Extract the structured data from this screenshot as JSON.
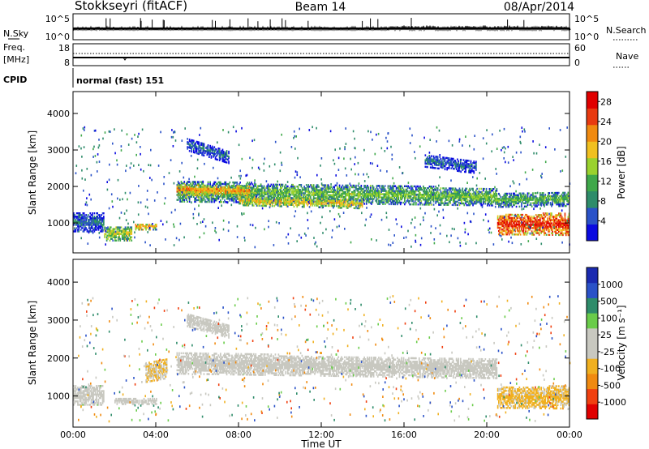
{
  "header": {
    "station": "Stokkseyri (fitACF)",
    "beam": "Beam 14",
    "date": "08/Apr/2014"
  },
  "top_panels": {
    "nsky": {
      "label": "N.Sky",
      "ticks": [
        "10^5",
        "10^0"
      ]
    },
    "nsearch": {
      "label": "N.Search",
      "ticks": [
        "10^5",
        "10^0"
      ]
    },
    "freq": {
      "label_line1": "Freq.",
      "label_line2": "[MHz]",
      "ticks": [
        "18",
        "8"
      ]
    },
    "nave": {
      "label": "Nave",
      "ticks": [
        "60",
        "0"
      ]
    },
    "cpid": {
      "label": "CPID",
      "value": "normal (fast) 151"
    }
  },
  "colors": {
    "power_scale": [
      "#0a0ae0",
      "#2a52c8",
      "#2e8c6a",
      "#3fa84a",
      "#9ad22e",
      "#f0c020",
      "#f08a10",
      "#e83a10",
      "#e00000"
    ],
    "velocity_scale": [
      "#e00000",
      "#f04010",
      "#f08a10",
      "#f0b020",
      "#c8c8c0",
      "#c8c8c0",
      "#6acc4a",
      "#2e8c6a",
      "#2a52c8",
      "#1a2ab0"
    ]
  },
  "chart_data": [
    {
      "type": "heatmap",
      "name": "power",
      "ylabel": "Slant Range [km]",
      "ylim": [
        180,
        4600
      ],
      "y_ticks": [
        "4000",
        "3000",
        "2000",
        "1000"
      ],
      "xlim": [
        0,
        24
      ],
      "x_ticks": [
        "00:00",
        "04:00",
        "08:00",
        "12:00",
        "16:00",
        "20:00",
        "00:00"
      ],
      "colorbar": {
        "label": "Power [dB]",
        "ticks": [
          "28",
          "24",
          "20",
          "16",
          "12",
          "8",
          "4"
        ],
        "range": [
          0,
          30
        ]
      },
      "bands": [
        {
          "t0": 5.0,
          "t1": 20.5,
          "r0c": 1850,
          "r1c": 1700,
          "w0": 280,
          "w1": 240,
          "value": 14
        },
        {
          "t0": 5.0,
          "t1": 8.5,
          "r0c": 1900,
          "r1c": 1850,
          "w0": 150,
          "w1": 140,
          "value": 22
        },
        {
          "t0": 8.0,
          "t1": 14.0,
          "r0c": 1600,
          "r1c": 1500,
          "w0": 130,
          "w1": 120,
          "value": 19
        },
        {
          "t0": 20.5,
          "t1": 24.0,
          "r0c": 950,
          "r1c": 950,
          "w0": 280,
          "w1": 300,
          "value": 27
        },
        {
          "t0": 20.5,
          "t1": 24.0,
          "r0c": 1600,
          "r1c": 1650,
          "w0": 180,
          "w1": 200,
          "value": 13
        },
        {
          "t0": 3.0,
          "t1": 4.0,
          "r0c": 880,
          "r1c": 880,
          "w0": 80,
          "w1": 80,
          "value": 21
        },
        {
          "t0": 0.0,
          "t1": 1.5,
          "r0c": 1000,
          "r1c": 1000,
          "w0": 250,
          "w1": 250,
          "value": 8
        },
        {
          "t0": 1.5,
          "t1": 2.8,
          "r0c": 700,
          "r1c": 700,
          "w0": 200,
          "w1": 200,
          "value": 17
        },
        {
          "t0": 5.5,
          "t1": 7.5,
          "r0c": 3150,
          "r1c": 2800,
          "w0": 180,
          "w1": 180,
          "value": 7
        },
        {
          "t0": 17.0,
          "t1": 19.5,
          "r0c": 2700,
          "r1c": 2500,
          "w0": 180,
          "w1": 160,
          "value": 7
        }
      ]
    },
    {
      "type": "heatmap",
      "name": "velocity",
      "ylabel": "Slant Range [km]",
      "ylim": [
        180,
        4600
      ],
      "y_ticks": [
        "4000",
        "3000",
        "2000",
        "1000"
      ],
      "xlim": [
        0,
        24
      ],
      "x_ticks": [
        "00:00",
        "04:00",
        "08:00",
        "12:00",
        "16:00",
        "20:00",
        "00:00"
      ],
      "xlabel": "Time UT",
      "colorbar": {
        "label": "Velocity [m s⁻¹]",
        "ticks": [
          "1000",
          "500",
          "100",
          "25",
          "-25",
          "-100",
          "-500",
          "-1000"
        ],
        "range": [
          -1200,
          1200
        ]
      },
      "bands": [
        {
          "t0": 5.0,
          "t1": 20.5,
          "r0c": 1850,
          "r1c": 1700,
          "w0": 280,
          "w1": 250,
          "value": 0
        },
        {
          "t0": 20.5,
          "t1": 24.0,
          "r0c": 950,
          "r1c": 950,
          "w0": 280,
          "w1": 300,
          "value": -300
        },
        {
          "t0": 3.5,
          "t1": 4.5,
          "r0c": 1600,
          "r1c": 1700,
          "w0": 250,
          "w1": 250,
          "value": -250
        },
        {
          "t0": 2.0,
          "t1": 4.0,
          "r0c": 850,
          "r1c": 850,
          "w0": 80,
          "w1": 80,
          "value": 0
        },
        {
          "t0": 0.0,
          "t1": 1.5,
          "r0c": 1000,
          "r1c": 1000,
          "w0": 250,
          "w1": 250,
          "value": 60
        },
        {
          "t0": 5.5,
          "t1": 7.5,
          "r0c": 3000,
          "r1c": 2700,
          "w0": 180,
          "w1": 180,
          "value": 0
        }
      ]
    }
  ]
}
